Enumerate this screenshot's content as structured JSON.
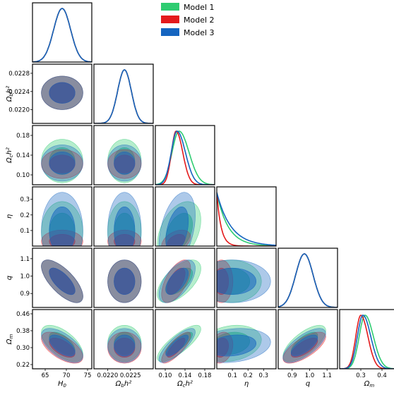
{
  "chart_data": {
    "type": "corner",
    "parameters": [
      {
        "id": "H0",
        "label": "H₀",
        "range": [
          62,
          76
        ],
        "ticks": [
          65,
          70,
          75
        ],
        "ticklabels": [
          "65",
          "70",
          "75"
        ]
      },
      {
        "id": "obh2",
        "label": "Ωbh²",
        "range": [
          0.0217,
          0.023
        ],
        "ticks": [
          0.022,
          0.0224,
          0.0228
        ],
        "ticklabels": [
          "0.0220",
          "0.0224",
          "0.0228"
        ],
        "xticks": [
          0.022,
          0.0225
        ],
        "xticklabels": [
          "0.0220",
          "0.0225"
        ]
      },
      {
        "id": "och2",
        "label": "Ωch²",
        "range": [
          0.08,
          0.2
        ],
        "ticks": [
          0.1,
          0.14,
          0.18
        ],
        "ticklabels": [
          "0.10",
          "0.14",
          "0.18"
        ]
      },
      {
        "id": "eta",
        "label": "η",
        "range": [
          0.0,
          0.38
        ],
        "ticks": [
          0.1,
          0.2,
          0.3
        ],
        "ticklabels": [
          "0.1",
          "0.2",
          "0.3"
        ]
      },
      {
        "id": "q",
        "label": "q",
        "range": [
          0.82,
          1.16
        ],
        "ticks": [
          0.9,
          1.0,
          1.1
        ],
        "ticklabels": [
          "0.9",
          "1.0",
          "1.1"
        ],
        "yticklabels": [
          "0.9",
          "1.0",
          "1.1"
        ]
      },
      {
        "id": "om",
        "label": "Ωm",
        "range": [
          0.2,
          0.48
        ],
        "ticks": [
          0.22,
          0.3,
          0.38,
          0.46
        ],
        "ticklabels": [
          "0.22",
          "0.30",
          "0.38",
          "0.46"
        ],
        "xticks": [
          0.3,
          0.4
        ],
        "xticklabels": [
          "0.3",
          "0.4"
        ]
      }
    ],
    "series": [
      {
        "name": "Model 1",
        "color": "#2ecc71",
        "means": {
          "H0": 69,
          "obh2": 0.02237,
          "och2": 0.128,
          "eta": 0.09,
          "q": 0.97,
          "om": 0.32
        },
        "sigmas": {
          "H0": 2.0,
          "obh2": 0.00015,
          "och2": 0.018,
          "eta": 0.08,
          "q": 0.05,
          "om": 0.035
        }
      },
      {
        "name": "Model 2",
        "color": "#e41a1c",
        "means": {
          "H0": 69,
          "obh2": 0.02237,
          "och2": 0.122,
          "eta": 0.03,
          "q": 0.97,
          "om": 0.3
        },
        "sigmas": {
          "H0": 2.0,
          "obh2": 0.00015,
          "och2": 0.012,
          "eta": 0.03,
          "q": 0.05,
          "om": 0.03
        }
      },
      {
        "name": "Model 3",
        "color": "#1565c0",
        "means": {
          "H0": 69,
          "obh2": 0.02237,
          "och2": 0.124,
          "eta": 0.1,
          "q": 0.97,
          "om": 0.31
        },
        "sigmas": {
          "H0": 2.0,
          "obh2": 0.00015,
          "och2": 0.015,
          "eta": 0.1,
          "q": 0.05,
          "om": 0.033
        }
      }
    ],
    "legend_position": "top-center",
    "axis_label_text": {
      "H0_x": "H",
      "H0_sub": "0",
      "obh2_main": "Ω",
      "obh2_sub": "b",
      "obh2_sup": "h²",
      "och2_main": "Ω",
      "och2_sub": "c",
      "och2_sup": "h²",
      "eta": "η",
      "q": "q",
      "om_main": "Ω",
      "om_sub": "m"
    }
  }
}
